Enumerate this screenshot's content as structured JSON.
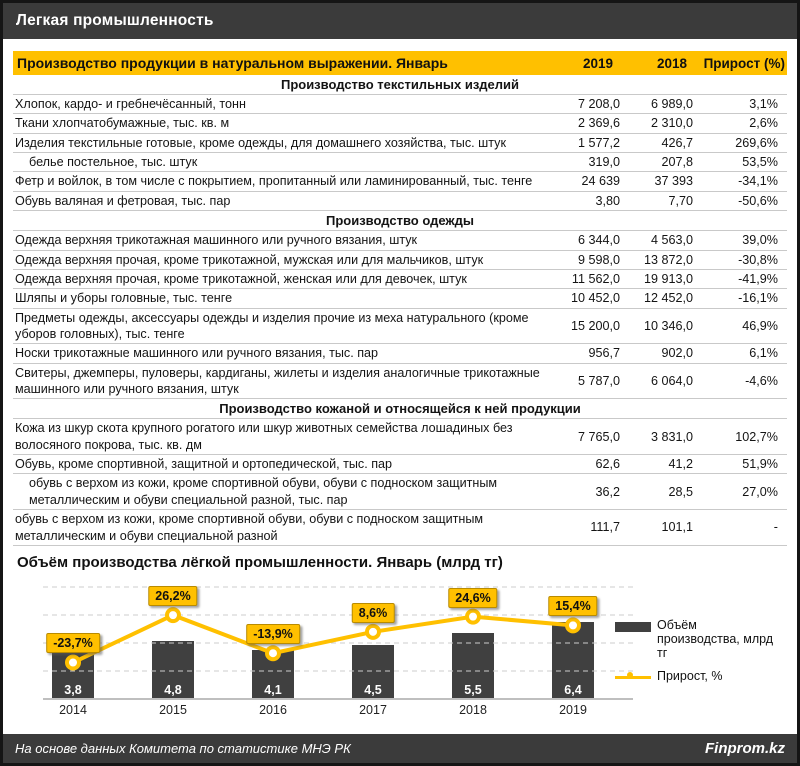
{
  "window": {
    "title": "Легкая промышленность"
  },
  "table": {
    "header": {
      "title": "Производство продукции в натуральном выражении. Январь",
      "col_2019": "2019",
      "col_2018": "2018",
      "col_growth": "Прирост (%)"
    },
    "rows": [
      {
        "type": "section",
        "label": "Производство текстильных изделий"
      },
      {
        "type": "row",
        "label": "Хлопок, кардо- и гребнечёсанный, тонн",
        "v2019": "7 208,0",
        "v2018": "6 989,0",
        "growth": "3,1%"
      },
      {
        "type": "row",
        "label": "Ткани хлопчатобумажные, тыс. кв. м",
        "v2019": "2 369,6",
        "v2018": "2 310,0",
        "growth": "2,6%"
      },
      {
        "type": "row",
        "label": "Изделия текстильные готовые, кроме одежды, для домашнего хозяйства, тыс. штук",
        "v2019": "1 577,2",
        "v2018": "426,7",
        "growth": "269,6%"
      },
      {
        "type": "row",
        "indent": true,
        "label": "белье постельное, тыс. штук",
        "v2019": "319,0",
        "v2018": "207,8",
        "growth": "53,5%"
      },
      {
        "type": "row",
        "label": "Фетр и войлок, в том числе с покрытием, пропитанный или ламинированный, тыс. тенге",
        "v2019": "24 639",
        "v2018": "37 393",
        "growth": "-34,1%"
      },
      {
        "type": "row",
        "label": "Обувь валяная и фетровая, тыс. пар",
        "v2019": "3,80",
        "v2018": "7,70",
        "growth": "-50,6%"
      },
      {
        "type": "section",
        "label": "Производство одежды"
      },
      {
        "type": "row",
        "label": "Одежда верхняя трикотажная машинного или ручного вязания, штук",
        "v2019": "6 344,0",
        "v2018": "4 563,0",
        "growth": "39,0%"
      },
      {
        "type": "row",
        "label": "Одежда верхняя прочая, кроме трикотажной, мужская или для мальчиков, штук",
        "v2019": "9 598,0",
        "v2018": "13 872,0",
        "growth": "-30,8%"
      },
      {
        "type": "row",
        "label": "Одежда верхняя прочая, кроме трикотажной, женская или для девочек, штук",
        "v2019": "11 562,0",
        "v2018": "19 913,0",
        "growth": "-41,9%"
      },
      {
        "type": "row",
        "label": "Шляпы и уборы головные, тыс. тенге",
        "v2019": "10 452,0",
        "v2018": "12 452,0",
        "growth": "-16,1%"
      },
      {
        "type": "row",
        "label": "Предметы одежды, аксессуары одежды и изделия прочие из меха натурального (кроме уборов головных), тыс. тенге",
        "v2019": "15 200,0",
        "v2018": "10 346,0",
        "growth": "46,9%"
      },
      {
        "type": "row",
        "label": "Носки трикотажные машинного или ручного вязания, тыс. пар",
        "v2019": "956,7",
        "v2018": "902,0",
        "growth": "6,1%"
      },
      {
        "type": "row",
        "label": "Свитеры, джемперы, пуловеры, кардиганы, жилеты и изделия аналогичные трикотажные машинного или ручного вязания, штук",
        "v2019": "5 787,0",
        "v2018": "6 064,0",
        "growth": "-4,6%"
      },
      {
        "type": "section",
        "label": "Производство кожаной и относящейся к ней продукции"
      },
      {
        "type": "row",
        "label": "Кожа из шкур скота крупного рогатого или шкур животных семейства лошадиных без волосяного покрова, тыс. кв. дм",
        "v2019": "7 765,0",
        "v2018": "3 831,0",
        "growth": "102,7%"
      },
      {
        "type": "row",
        "label": "Обувь, кроме спортивной, защитной и ортопедической, тыс. пар",
        "v2019": "62,6",
        "v2018": "41,2",
        "growth": "51,9%"
      },
      {
        "type": "row",
        "indent": true,
        "label": "обувь с верхом из кожи, кроме спортивной обуви, обуви с подноском защитным металлическим и обуви специальной разной, тыс. пар",
        "v2019": "36,2",
        "v2018": "28,5",
        "growth": "27,0%"
      },
      {
        "type": "row",
        "label": "обувь с верхом из кожи, кроме спортивной обуви, обуви с подноском защитным металлическим и обуви специальной разной",
        "v2019": "111,7",
        "v2018": "101,1",
        "growth": "-"
      }
    ]
  },
  "chart_data": {
    "type": "bar",
    "title": "Объём производства лёгкой промышленности. Январь (млрд тг)",
    "categories": [
      "2014",
      "2015",
      "2016",
      "2017",
      "2018",
      "2019"
    ],
    "series": [
      {
        "name": "Объём производства, млрд тг",
        "type": "bar",
        "values": [
          3.8,
          4.8,
          4.1,
          4.5,
          5.5,
          6.4
        ],
        "labels": [
          "3,8",
          "4,8",
          "4,1",
          "4,5",
          "5,5",
          "6,4"
        ],
        "color": "#404040"
      },
      {
        "name": "Прирост, %",
        "type": "line",
        "values": [
          -23.7,
          26.2,
          -13.9,
          8.6,
          24.6,
          15.4
        ],
        "labels": [
          "-23,7%",
          "26,2%",
          "-13,9%",
          "8,6%",
          "24,6%",
          "15,4%"
        ],
        "color": "#FFC000"
      }
    ],
    "legend_position": "right",
    "grid": "dashed-horizontal",
    "xlabel": "",
    "ylabel": ""
  },
  "footer": {
    "source": "На основе данных  Комитета по статистике МНЭ РК",
    "brand": "Finprom.kz"
  },
  "colors": {
    "accent": "#FFC000",
    "dark_bar": "#3b3b3b",
    "chart_bar": "#404040",
    "row_border": "#c9c9c9"
  }
}
